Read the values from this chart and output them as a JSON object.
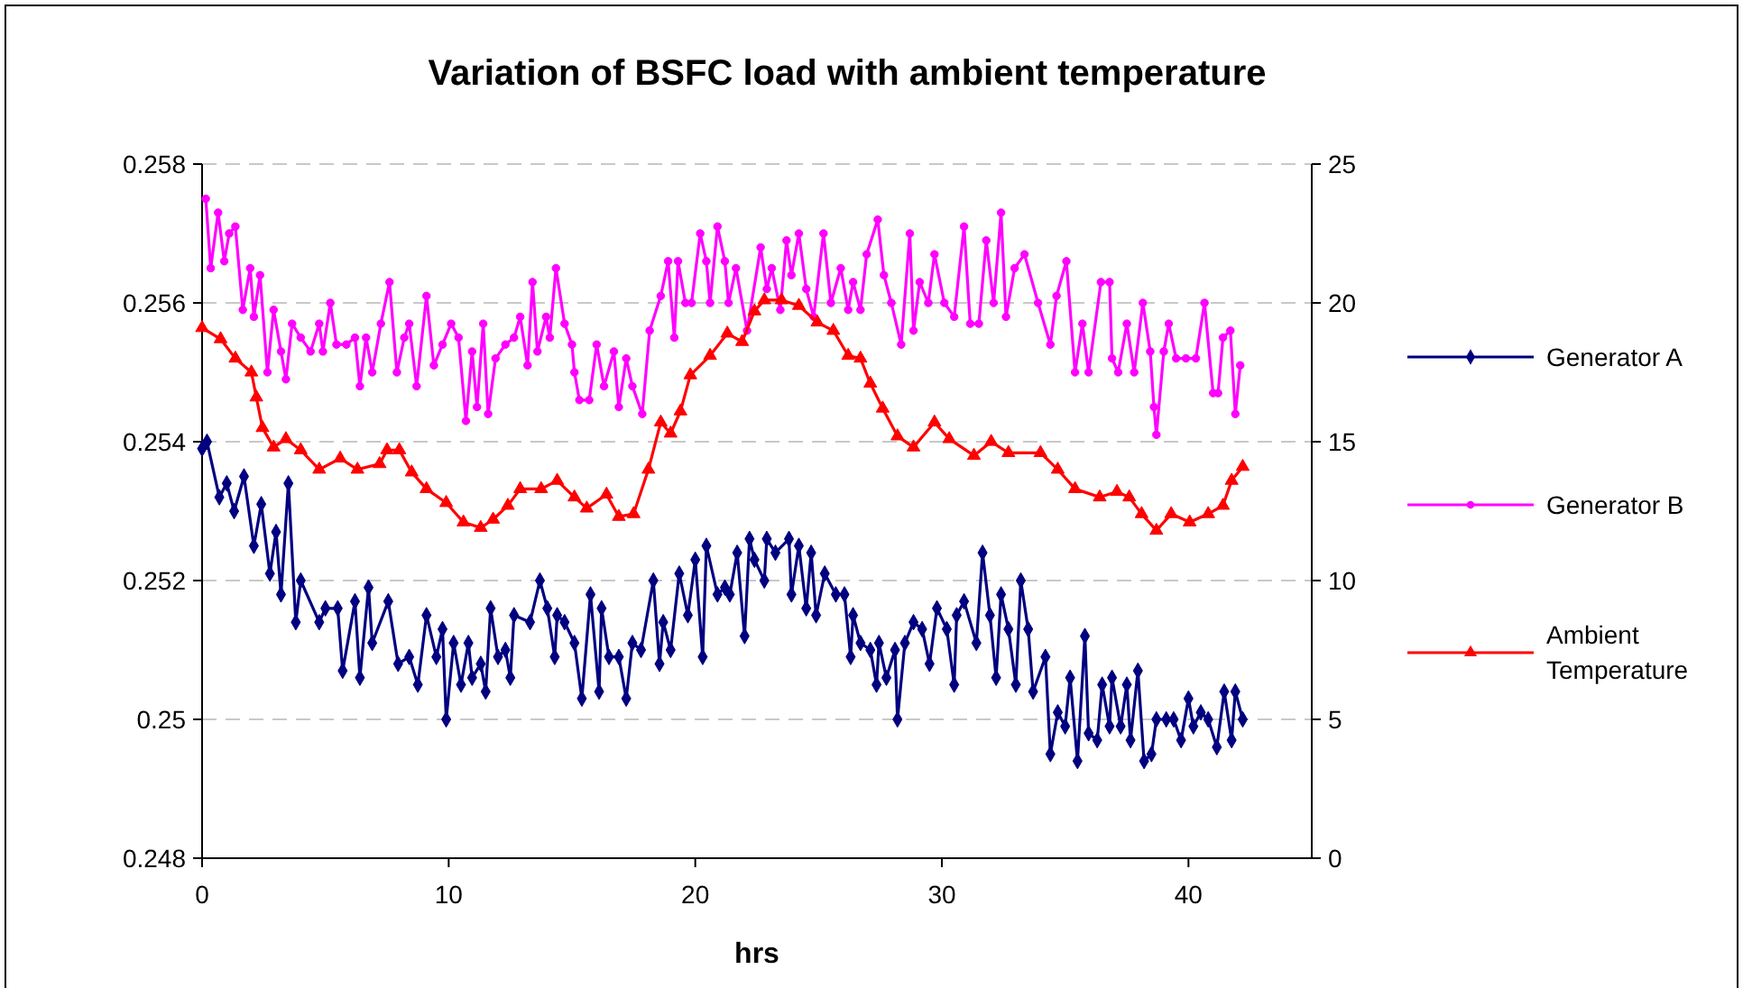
{
  "chart_data": {
    "type": "line",
    "title": "Variation of BSFC load with ambient temperature",
    "xlabel": "hrs",
    "xlim": [
      0,
      45
    ],
    "xticks": [
      0,
      10,
      20,
      30,
      40
    ],
    "ylim": [
      0.248,
      0.258
    ],
    "yticks": [
      0.248,
      0.25,
      0.252,
      0.254,
      0.256,
      0.258
    ],
    "y2lim": [
      0,
      25
    ],
    "y2ticks": [
      0,
      5,
      10,
      15,
      20,
      25
    ],
    "grid": "y",
    "legend": "right",
    "series": [
      {
        "name": "Generator A",
        "color": "#000080",
        "marker": "diamond",
        "x": [
          0,
          0.2,
          0.7,
          1.0,
          1.3,
          1.7,
          2.1,
          2.4,
          2.75,
          3.0,
          3.2,
          3.5,
          3.8,
          4.0,
          4.75,
          5.0,
          5.5,
          5.7,
          6.2,
          6.4,
          6.75,
          6.9,
          7.55,
          7.95,
          8.4,
          8.75,
          9.1,
          9.5,
          9.75,
          9.9,
          10.2,
          10.5,
          10.8,
          10.95,
          11.3,
          11.5,
          11.7,
          12.0,
          12.3,
          12.5,
          12.65,
          13.3,
          13.7,
          14.0,
          14.3,
          14.4,
          14.7,
          15.1,
          15.4,
          15.75,
          16.1,
          16.2,
          16.5,
          16.9,
          17.2,
          17.45,
          17.8,
          18.3,
          18.55,
          18.7,
          19.0,
          19.35,
          19.7,
          20.0,
          20.3,
          20.45,
          20.9,
          21.2,
          21.4,
          21.7,
          22.0,
          22.2,
          22.4,
          22.8,
          22.9,
          23.25,
          23.8,
          23.9,
          24.2,
          24.5,
          24.7,
          24.9,
          25.25,
          25.7,
          26.05,
          26.3,
          26.4,
          26.7,
          27.1,
          27.35,
          27.45,
          27.75,
          28.1,
          28.2,
          28.5,
          28.85,
          29.2,
          29.5,
          29.8,
          30.2,
          30.5,
          30.6,
          30.9,
          31.4,
          31.65,
          31.95,
          32.2,
          32.4,
          32.7,
          33.0,
          33.2,
          33.5,
          33.7,
          34.2,
          34.4,
          34.7,
          35.0,
          35.2,
          35.5,
          35.8,
          35.95,
          36.3,
          36.5,
          36.8,
          36.9,
          37.25,
          37.5,
          37.65,
          37.95,
          38.2,
          38.5,
          38.7,
          39.1,
          39.4,
          39.7,
          40.0,
          40.2,
          40.5,
          40.8,
          41.15,
          41.45,
          41.75,
          41.9,
          42.2
        ],
        "values": [
          0.2539,
          0.254,
          0.2532,
          0.2534,
          0.253,
          0.2535,
          0.2525,
          0.2531,
          0.2521,
          0.2527,
          0.2518,
          0.2534,
          0.2514,
          0.252,
          0.2514,
          0.2516,
          0.2516,
          0.2507,
          0.2517,
          0.2506,
          0.2519,
          0.2511,
          0.2517,
          0.2508,
          0.2509,
          0.2505,
          0.2515,
          0.2509,
          0.2513,
          0.25,
          0.2511,
          0.2505,
          0.2511,
          0.2506,
          0.2508,
          0.2504,
          0.2516,
          0.2509,
          0.251,
          0.2506,
          0.2515,
          0.2514,
          0.252,
          0.2516,
          0.2509,
          0.2515,
          0.2514,
          0.2511,
          0.2503,
          0.2518,
          0.2504,
          0.2516,
          0.2509,
          0.2509,
          0.2503,
          0.2511,
          0.251,
          0.252,
          0.2508,
          0.2514,
          0.251,
          0.2521,
          0.2515,
          0.2523,
          0.2509,
          0.2525,
          0.2518,
          0.2519,
          0.2518,
          0.2524,
          0.2512,
          0.2526,
          0.2523,
          0.252,
          0.2526,
          0.2524,
          0.2526,
          0.2518,
          0.2525,
          0.2516,
          0.2524,
          0.2515,
          0.2521,
          0.2518,
          0.2518,
          0.2509,
          0.2515,
          0.2511,
          0.251,
          0.2505,
          0.2511,
          0.2506,
          0.251,
          0.25,
          0.2511,
          0.2514,
          0.2513,
          0.2508,
          0.2516,
          0.2513,
          0.2505,
          0.2515,
          0.2517,
          0.2511,
          0.2524,
          0.2515,
          0.2506,
          0.2518,
          0.2513,
          0.2505,
          0.252,
          0.2513,
          0.2504,
          0.2509,
          0.2495,
          0.2501,
          0.2499,
          0.2506,
          0.2494,
          0.2512,
          0.2498,
          0.2497,
          0.2505,
          0.2499,
          0.2506,
          0.2499,
          0.2505,
          0.2497,
          0.2507,
          0.2494,
          0.2495,
          0.25,
          0.25,
          0.25,
          0.2497,
          0.2503,
          0.2499,
          0.2501,
          0.25,
          0.2496,
          0.2504,
          0.2497,
          0.2504,
          0.25
        ]
      },
      {
        "name": "Generator B",
        "color": "#ff00ff",
        "marker": "circle",
        "x": [
          0.15,
          0.35,
          0.65,
          0.9,
          1.1,
          1.35,
          1.65,
          1.95,
          2.1,
          2.35,
          2.65,
          2.9,
          3.2,
          3.4,
          3.65,
          4.0,
          4.4,
          4.75,
          4.9,
          5.2,
          5.45,
          5.85,
          6.2,
          6.4,
          6.65,
          6.9,
          7.25,
          7.6,
          7.9,
          8.2,
          8.4,
          8.7,
          9.1,
          9.4,
          9.75,
          10.1,
          10.4,
          10.7,
          10.95,
          11.15,
          11.4,
          11.6,
          11.9,
          12.3,
          12.65,
          12.9,
          13.2,
          13.4,
          13.6,
          13.95,
          14.1,
          14.35,
          14.7,
          15.0,
          15.1,
          15.3,
          15.7,
          16.0,
          16.3,
          16.7,
          16.9,
          17.2,
          17.45,
          17.85,
          18.15,
          18.6,
          18.9,
          19.15,
          19.3,
          19.6,
          19.85,
          20.2,
          20.45,
          20.6,
          20.9,
          21.2,
          21.35,
          21.65,
          22.1,
          22.65,
          22.9,
          23.1,
          23.45,
          23.7,
          23.9,
          24.2,
          24.5,
          24.8,
          25.2,
          25.5,
          25.9,
          26.2,
          26.4,
          26.7,
          26.95,
          27.4,
          27.65,
          27.95,
          28.35,
          28.7,
          28.85,
          29.1,
          29.45,
          29.7,
          30.1,
          30.5,
          30.9,
          31.15,
          31.5,
          31.8,
          32.1,
          32.4,
          32.6,
          32.95,
          33.35,
          33.9,
          34.4,
          34.65,
          35.05,
          35.4,
          35.7,
          35.95,
          36.45,
          36.8,
          36.9,
          37.15,
          37.5,
          37.8,
          38.15,
          38.45,
          38.6,
          38.7,
          39.0,
          39.2,
          39.5,
          39.9,
          40.3,
          40.65,
          41.0,
          41.2,
          41.4,
          41.7,
          41.9,
          42.1
        ],
        "values": [
          0.2575,
          0.2565,
          0.2573,
          0.2566,
          0.257,
          0.2571,
          0.2559,
          0.2565,
          0.2558,
          0.2564,
          0.255,
          0.2559,
          0.2553,
          0.2549,
          0.2557,
          0.2555,
          0.2553,
          0.2557,
          0.2553,
          0.256,
          0.2554,
          0.2554,
          0.2555,
          0.2548,
          0.2555,
          0.255,
          0.2557,
          0.2563,
          0.255,
          0.2555,
          0.2557,
          0.2548,
          0.2561,
          0.2551,
          0.2554,
          0.2557,
          0.2555,
          0.2543,
          0.2553,
          0.2545,
          0.2557,
          0.2544,
          0.2552,
          0.2554,
          0.2555,
          0.2558,
          0.2551,
          0.2563,
          0.2553,
          0.2558,
          0.2555,
          0.2565,
          0.2557,
          0.2554,
          0.255,
          0.2546,
          0.2546,
          0.2554,
          0.2548,
          0.2553,
          0.2545,
          0.2552,
          0.2548,
          0.2544,
          0.2556,
          0.2561,
          0.2566,
          0.2555,
          0.2566,
          0.256,
          0.256,
          0.257,
          0.2566,
          0.256,
          0.2571,
          0.2566,
          0.256,
          0.2565,
          0.2556,
          0.2568,
          0.2562,
          0.2565,
          0.2559,
          0.2569,
          0.2564,
          0.257,
          0.2562,
          0.2558,
          0.257,
          0.256,
          0.2565,
          0.2559,
          0.2563,
          0.2559,
          0.2567,
          0.2572,
          0.2564,
          0.256,
          0.2554,
          0.257,
          0.2556,
          0.2563,
          0.256,
          0.2567,
          0.256,
          0.2558,
          0.2571,
          0.2557,
          0.2557,
          0.2569,
          0.256,
          0.2573,
          0.2558,
          0.2565,
          0.2567,
          0.256,
          0.2554,
          0.2561,
          0.2566,
          0.255,
          0.2557,
          0.255,
          0.2563,
          0.2563,
          0.2552,
          0.255,
          0.2557,
          0.255,
          0.256,
          0.2553,
          0.2545,
          0.2541,
          0.2553,
          0.2557,
          0.2552,
          0.2552,
          0.2552,
          0.256,
          0.2547,
          0.2547,
          0.2555,
          0.2556,
          0.2544,
          0.2551
        ]
      },
      {
        "name": "Ambient Temperature",
        "color": "#ff0000",
        "marker": "triangle",
        "axis": "y2",
        "x": [
          0,
          0.75,
          1.35,
          2.0,
          2.2,
          2.45,
          2.9,
          3.4,
          4.0,
          4.75,
          5.6,
          6.3,
          7.2,
          7.5,
          8.0,
          8.5,
          9.1,
          9.9,
          10.6,
          11.3,
          11.8,
          12.4,
          12.9,
          13.75,
          14.4,
          15.1,
          15.6,
          16.4,
          16.9,
          17.5,
          18.1,
          18.6,
          19.0,
          19.4,
          19.8,
          20.6,
          21.3,
          21.9,
          22.4,
          22.8,
          23.5,
          24.2,
          24.95,
          25.6,
          26.2,
          26.7,
          27.1,
          27.6,
          28.2,
          28.85,
          29.7,
          30.3,
          31.3,
          32.0,
          32.7,
          34.0,
          34.7,
          35.4,
          36.4,
          37.1,
          37.6,
          38.1,
          38.7,
          39.3,
          40.05,
          40.8,
          41.4,
          41.75,
          42.2
        ],
        "values": [
          19.1,
          18.7,
          18.0,
          17.5,
          16.6,
          15.5,
          14.8,
          15.1,
          14.7,
          14.0,
          14.4,
          14.0,
          14.2,
          14.7,
          14.7,
          13.9,
          13.3,
          12.8,
          12.1,
          11.9,
          12.2,
          12.7,
          13.3,
          13.3,
          13.6,
          13.0,
          12.6,
          13.1,
          12.3,
          12.4,
          14.0,
          15.7,
          15.3,
          16.1,
          17.4,
          18.1,
          18.9,
          18.6,
          19.7,
          20.1,
          20.1,
          19.9,
          19.3,
          19.0,
          18.1,
          18.0,
          17.1,
          16.2,
          15.2,
          14.8,
          15.7,
          15.1,
          14.5,
          15.0,
          14.6,
          14.6,
          14.0,
          13.3,
          13.0,
          13.2,
          13.0,
          12.4,
          11.8,
          12.4,
          12.1,
          12.4,
          12.7,
          13.6,
          14.1
        ]
      }
    ]
  }
}
